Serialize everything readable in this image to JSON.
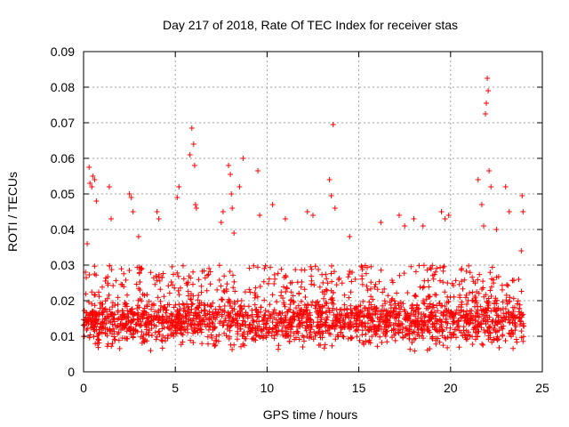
{
  "chart_data": {
    "type": "scatter",
    "title": "Day 217 of 2018, Rate Of TEC Index for receiver stas",
    "xlabel": "GPS time / hours",
    "ylabel": "ROTI / TECUs",
    "xlim": [
      0,
      25
    ],
    "ylim": [
      0,
      0.09
    ],
    "grid": true,
    "marker": "+",
    "colors": {
      "series": "#ff0000",
      "grid": "#a0a0a0",
      "axis": "#000000"
    },
    "x_ticks": [
      0,
      5,
      10,
      15,
      20,
      25
    ],
    "x_tick_labels": [
      "0",
      "5",
      "10",
      "15",
      "20",
      "25"
    ],
    "y_ticks": [
      0,
      0.01,
      0.02,
      0.03,
      0.04,
      0.05,
      0.06,
      0.07,
      0.08,
      0.09
    ],
    "y_tick_labels": [
      "0",
      "0.01",
      "0.02",
      "0.03",
      "0.04",
      "0.05",
      "0.06",
      "0.07",
      "0.08",
      "0.09"
    ],
    "series": [
      {
        "name": "ROTI",
        "x_range": [
          0,
          24
        ],
        "baseline": 0.014,
        "typical_band": [
          0.005,
          0.03
        ],
        "points": [
          {
            "x": 0.2,
            "y": 0.036
          },
          {
            "x": 0.3,
            "y": 0.0575
          },
          {
            "x": 0.35,
            "y": 0.053
          },
          {
            "x": 0.45,
            "y": 0.052
          },
          {
            "x": 0.5,
            "y": 0.055
          },
          {
            "x": 0.6,
            "y": 0.054
          },
          {
            "x": 0.7,
            "y": 0.048
          },
          {
            "x": 1.4,
            "y": 0.052
          },
          {
            "x": 1.5,
            "y": 0.043
          },
          {
            "x": 2.5,
            "y": 0.05
          },
          {
            "x": 2.6,
            "y": 0.049
          },
          {
            "x": 2.7,
            "y": 0.045
          },
          {
            "x": 3.0,
            "y": 0.038
          },
          {
            "x": 4.0,
            "y": 0.045
          },
          {
            "x": 4.1,
            "y": 0.043
          },
          {
            "x": 5.2,
            "y": 0.052
          },
          {
            "x": 5.1,
            "y": 0.049
          },
          {
            "x": 5.8,
            "y": 0.061
          },
          {
            "x": 5.9,
            "y": 0.0685
          },
          {
            "x": 6.0,
            "y": 0.064
          },
          {
            "x": 6.05,
            "y": 0.058
          },
          {
            "x": 6.1,
            "y": 0.047
          },
          {
            "x": 6.15,
            "y": 0.046
          },
          {
            "x": 7.5,
            "y": 0.042
          },
          {
            "x": 7.6,
            "y": 0.045
          },
          {
            "x": 7.9,
            "y": 0.058
          },
          {
            "x": 8.0,
            "y": 0.0555
          },
          {
            "x": 8.05,
            "y": 0.05
          },
          {
            "x": 8.1,
            "y": 0.046
          },
          {
            "x": 8.2,
            "y": 0.039
          },
          {
            "x": 8.5,
            "y": 0.052
          },
          {
            "x": 8.7,
            "y": 0.06
          },
          {
            "x": 9.5,
            "y": 0.0565
          },
          {
            "x": 9.6,
            "y": 0.044
          },
          {
            "x": 10.3,
            "y": 0.047
          },
          {
            "x": 11.0,
            "y": 0.043
          },
          {
            "x": 12.2,
            "y": 0.045
          },
          {
            "x": 12.5,
            "y": 0.044
          },
          {
            "x": 13.4,
            "y": 0.054
          },
          {
            "x": 13.5,
            "y": 0.0495
          },
          {
            "x": 13.6,
            "y": 0.0695
          },
          {
            "x": 13.7,
            "y": 0.046
          },
          {
            "x": 14.5,
            "y": 0.038
          },
          {
            "x": 16.2,
            "y": 0.042
          },
          {
            "x": 17.2,
            "y": 0.044
          },
          {
            "x": 17.5,
            "y": 0.041
          },
          {
            "x": 18.0,
            "y": 0.043
          },
          {
            "x": 18.5,
            "y": 0.041
          },
          {
            "x": 19.5,
            "y": 0.045
          },
          {
            "x": 19.7,
            "y": 0.043
          },
          {
            "x": 19.9,
            "y": 0.044
          },
          {
            "x": 21.5,
            "y": 0.054
          },
          {
            "x": 21.7,
            "y": 0.047
          },
          {
            "x": 21.8,
            "y": 0.041
          },
          {
            "x": 21.9,
            "y": 0.0725
          },
          {
            "x": 21.95,
            "y": 0.0755
          },
          {
            "x": 22.0,
            "y": 0.0825
          },
          {
            "x": 22.05,
            "y": 0.079
          },
          {
            "x": 22.1,
            "y": 0.0565
          },
          {
            "x": 22.2,
            "y": 0.052
          },
          {
            "x": 22.5,
            "y": 0.04
          },
          {
            "x": 23.0,
            "y": 0.052
          },
          {
            "x": 23.2,
            "y": 0.045
          },
          {
            "x": 23.9,
            "y": 0.0495
          },
          {
            "x": 23.95,
            "y": 0.045
          },
          {
            "x": 23.85,
            "y": 0.034
          }
        ]
      }
    ]
  }
}
